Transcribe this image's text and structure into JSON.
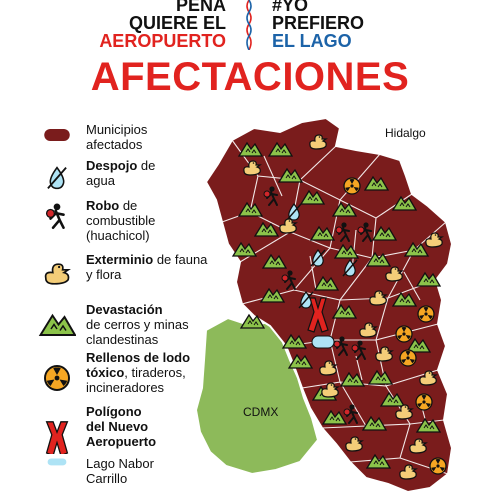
{
  "header": {
    "left_lines": [
      "PEÑA",
      "QUIERE EL",
      "AEROPUERTO"
    ],
    "right_lines": [
      "#YO",
      "PREFIERO",
      "EL LAGO"
    ]
  },
  "title": "AFECTACIONES",
  "legend": [
    {
      "icon": "municipality-swatch",
      "parts": [
        {
          "t": "Municipios",
          "b": false
        },
        {
          "t": "afectados",
          "b": false
        }
      ]
    },
    {
      "icon": "water-drop-crossed-icon",
      "parts": [
        {
          "t": "Despojo",
          "b": true
        },
        {
          "t": " de",
          "b": false
        },
        {
          "t": "agua",
          "b": false
        }
      ]
    },
    {
      "icon": "thief-icon",
      "parts": [
        {
          "t": "Robo",
          "b": true
        },
        {
          "t": " de",
          "b": false
        },
        {
          "t": "combustible",
          "b": false
        },
        {
          "t": "(huachicol)",
          "b": false
        }
      ]
    },
    {
      "icon": "duck-icon",
      "parts": [
        {
          "t": "Exterminio",
          "b": true
        },
        {
          "t": " de fauna",
          "b": false
        },
        {
          "t": "y flora",
          "b": false
        }
      ]
    },
    {
      "icon": "mountain-mine-icon",
      "parts": [
        {
          "t": "Devastación",
          "b": true
        },
        {
          "t": "de cerros y minas",
          "b": false
        },
        {
          "t": "clandestinas",
          "b": false
        }
      ]
    },
    {
      "icon": "toxic-icon",
      "parts": [
        {
          "t": "Rellenos de lodo",
          "b": true
        },
        {
          "t": "tóxico",
          "b": true
        },
        {
          "t": ", tiraderos,",
          "b": false
        },
        {
          "t": "incineradores",
          "b": false
        }
      ]
    },
    {
      "icon": "airport-polygon-icon",
      "parts": [
        {
          "t": "Polígono",
          "b": true
        },
        {
          "t": "del Nuevo",
          "b": true
        },
        {
          "t": "Aeropuerto",
          "b": true
        }
      ]
    },
    {
      "icon": "lake-icon",
      "parts": [
        {
          "t": "Lago Nabor",
          "b": false
        },
        {
          "t": "Carrillo",
          "b": false
        }
      ]
    }
  ],
  "map_labels": {
    "hidalgo": "Hidalgo",
    "cdmx": "CDMX"
  },
  "colors": {
    "municipality": "#7a1c1c",
    "cdmx": "#8dba5a",
    "title_red": "#e1231f",
    "header_blue": "#1c63a8",
    "lake": "#aee3f5",
    "mountain": "#8cc34a",
    "duck": "#f4cd78",
    "toxic": "#f5a623"
  }
}
